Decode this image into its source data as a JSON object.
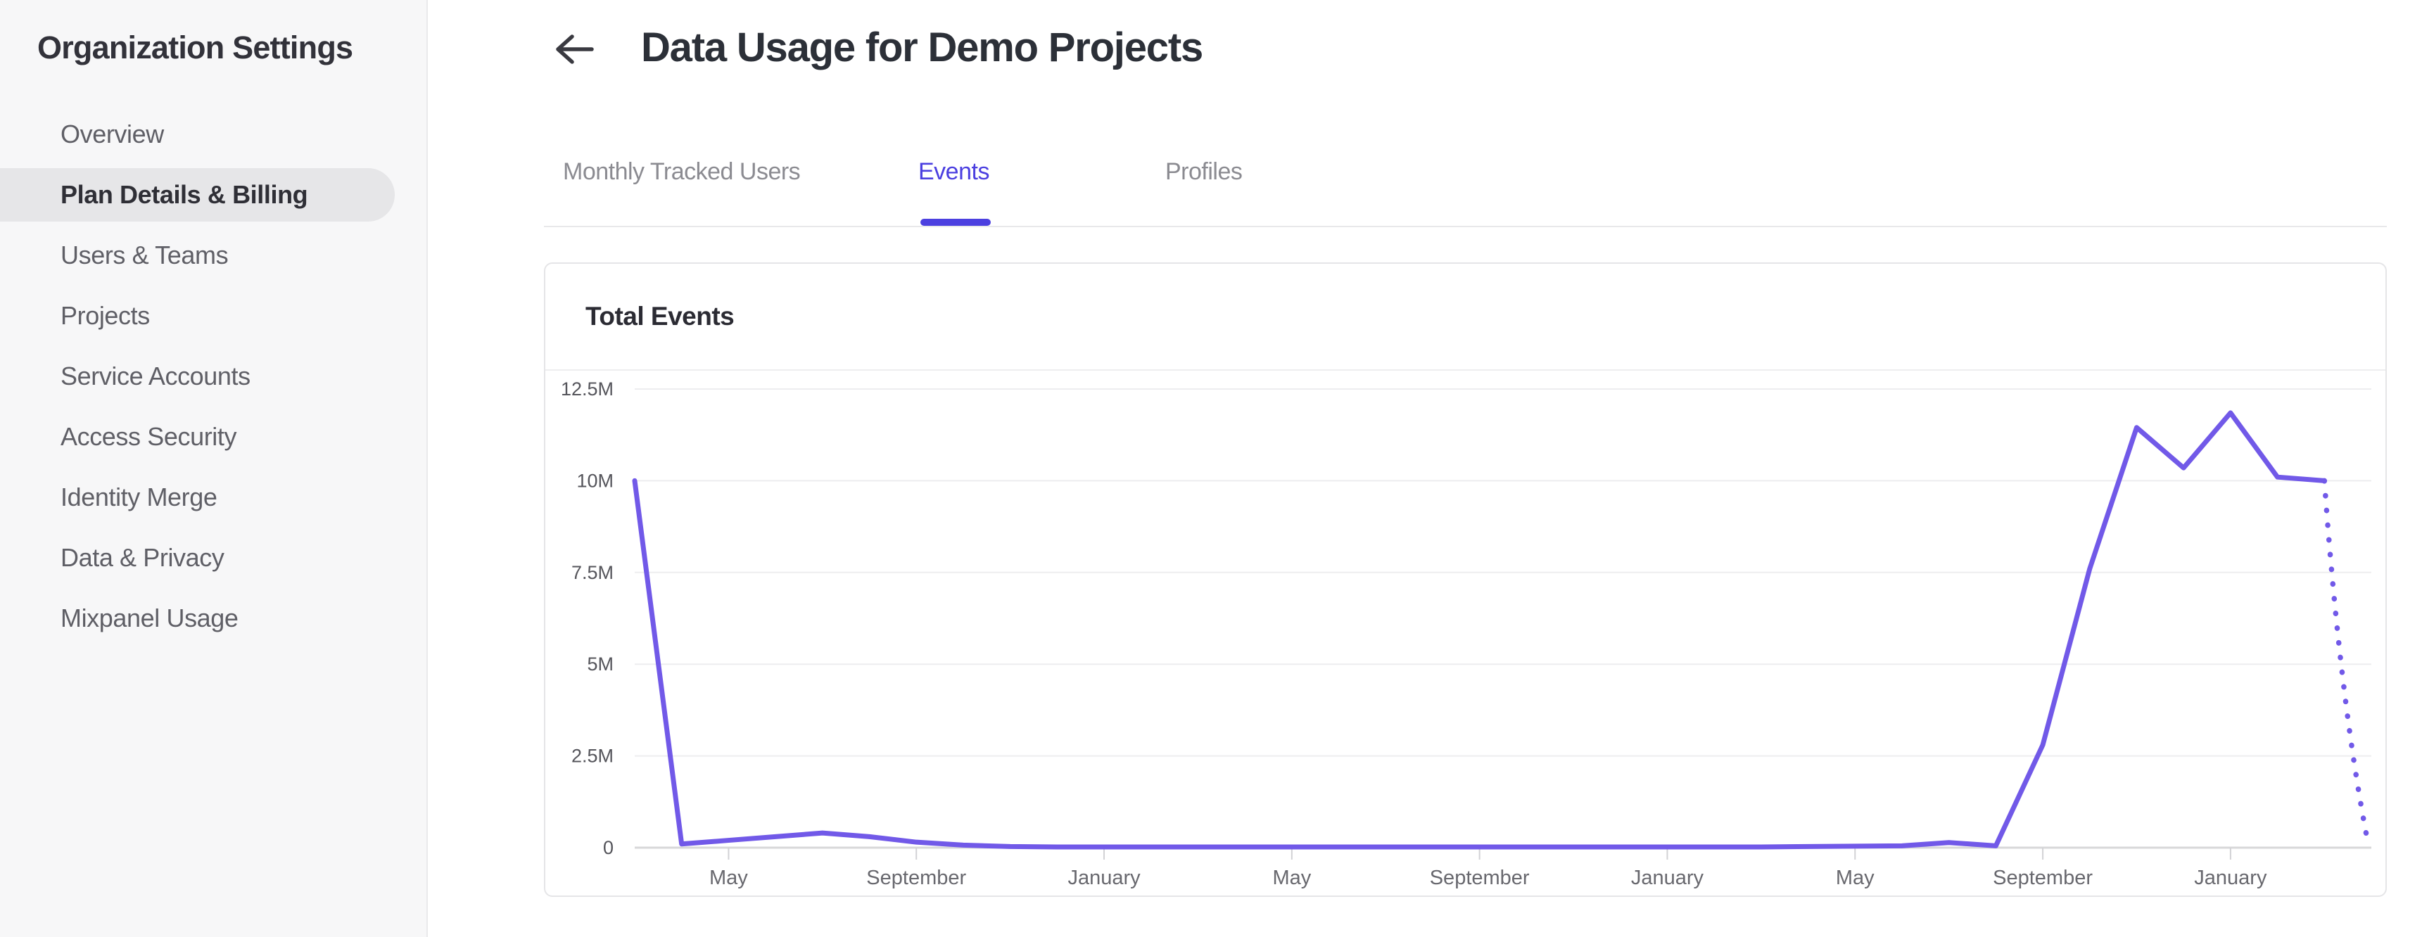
{
  "sidebar": {
    "title": "Organization Settings",
    "items": [
      {
        "label": "Overview",
        "active": false
      },
      {
        "label": "Plan Details & Billing",
        "active": true
      },
      {
        "label": "Users & Teams",
        "active": false
      },
      {
        "label": "Projects",
        "active": false
      },
      {
        "label": "Service Accounts",
        "active": false
      },
      {
        "label": "Access Security",
        "active": false
      },
      {
        "label": "Identity Merge",
        "active": false
      },
      {
        "label": "Data & Privacy",
        "active": false
      },
      {
        "label": "Mixpanel Usage",
        "active": false
      }
    ]
  },
  "header": {
    "back_icon": "left-arrow-icon",
    "title": "Data Usage for Demo Projects"
  },
  "tabs": [
    {
      "label": "Monthly Tracked Users",
      "active": false
    },
    {
      "label": "Events",
      "active": true
    },
    {
      "label": "Profiles",
      "active": false
    }
  ],
  "card": {
    "title": "Total Events"
  },
  "colors": {
    "accent_active_tab": "#4b3fe0",
    "tab_underline": "#4c40e0",
    "series_line": "#7159e8",
    "sidebar_bg": "#f7f7f8",
    "active_item_pill": "#e6e6e8",
    "gridline": "#ededef",
    "axis_line": "#d7d7d9"
  },
  "chart_data": {
    "type": "line",
    "title": "Total Events",
    "y_axis": {
      "tick_labels": [
        "12.5M",
        "10M",
        "7.5M",
        "5M",
        "2.5M",
        "0"
      ],
      "tick_values": [
        12.5,
        10,
        7.5,
        5,
        2.5,
        0
      ],
      "max": 12.5,
      "unit": "millions of events",
      "grid": true
    },
    "x_axis": {
      "tick_labels": [
        "May",
        "September",
        "January",
        "May",
        "September",
        "January",
        "May",
        "September",
        "January"
      ],
      "tick_month_indices": [
        2,
        6,
        10,
        14,
        18,
        22,
        26,
        30,
        34
      ],
      "total_month_intervals": 37
    },
    "legend": "none",
    "series": [
      {
        "name": "Total Events",
        "color": "#7159e8",
        "values_millions": [
          10.0,
          0.1,
          0.2,
          0.3,
          0.4,
          0.3,
          0.15,
          0.07,
          0.03,
          0.02,
          0.02,
          0.02,
          0.02,
          0.02,
          0.02,
          0.02,
          0.02,
          0.02,
          0.02,
          0.02,
          0.02,
          0.02,
          0.02,
          0.02,
          0.02,
          0.03,
          0.04,
          0.05,
          0.14,
          0.05,
          2.8,
          7.6,
          11.45,
          10.35,
          11.85,
          10.1,
          10.0,
          0.25
        ],
        "dotted_from_index": 36,
        "dotted_style": "round-dots (incomplete current period)"
      }
    ]
  }
}
